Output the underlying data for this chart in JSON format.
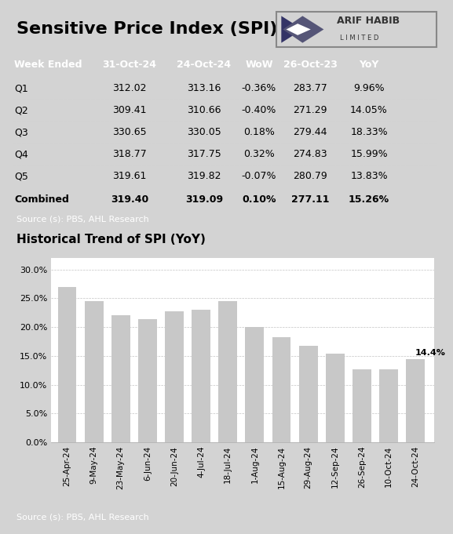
{
  "title": "Sensitive Price Index (SPI)",
  "table_header": [
    "Week Ended",
    "31-Oct-24",
    "24-Oct-24",
    "WoW",
    "26-Oct-23",
    "YoY"
  ],
  "table_rows": [
    [
      "Q1",
      "312.02",
      "313.16",
      "-0.36%",
      "283.77",
      "9.96%"
    ],
    [
      "Q2",
      "309.41",
      "310.66",
      "-0.40%",
      "271.29",
      "14.05%"
    ],
    [
      "Q3",
      "330.65",
      "330.05",
      "0.18%",
      "279.44",
      "18.33%"
    ],
    [
      "Q4",
      "318.77",
      "317.75",
      "0.32%",
      "274.83",
      "15.99%"
    ],
    [
      "Q5",
      "319.61",
      "319.82",
      "-0.07%",
      "280.79",
      "13.83%"
    ],
    [
      "Combined",
      "319.40",
      "319.09",
      "0.10%",
      "277.11",
      "15.26%"
    ]
  ],
  "source_text": "Source (s): PBS, AHL Research",
  "chart_title": "Historical Trend of SPI (YoY)",
  "bar_labels": [
    "25-Apr-24",
    "9-May-24",
    "23-May-24",
    "6-Jun-24",
    "20-Jun-24",
    "4-Jul-24",
    "18-Jul-24",
    "1-Aug-24",
    "15-Aug-24",
    "29-Aug-24",
    "12-Sep-24",
    "26-Sep-24",
    "10-Oct-24",
    "24-Oct-24"
  ],
  "bar_values": [
    26.9,
    24.5,
    22.1,
    21.4,
    22.8,
    23.0,
    24.5,
    20.0,
    18.3,
    16.7,
    15.4,
    12.6,
    12.6,
    14.4
  ],
  "header_bg": "#2E3B8C",
  "header_fg": "#FFFFFF",
  "row_bg_even": "#F5F5F5",
  "row_bg_odd": "#FFFFFF",
  "title_bg": "#D3D3D3",
  "chart_header_bg": "#F5D58C",
  "bar_color": "#C8C8C8",
  "source_bar_bg": "#2E3B8C",
  "annotation_label": "14.4%",
  "ylim": [
    0,
    32
  ],
  "ytick_labels": [
    "0.0%",
    "5.0%",
    "10.0%",
    "15.0%",
    "20.0%",
    "25.0%",
    "30.0%"
  ],
  "col_positions": [
    8,
    155,
    250,
    320,
    385,
    460
  ],
  "col_aligns": [
    "left",
    "center",
    "center",
    "center",
    "center",
    "center"
  ]
}
